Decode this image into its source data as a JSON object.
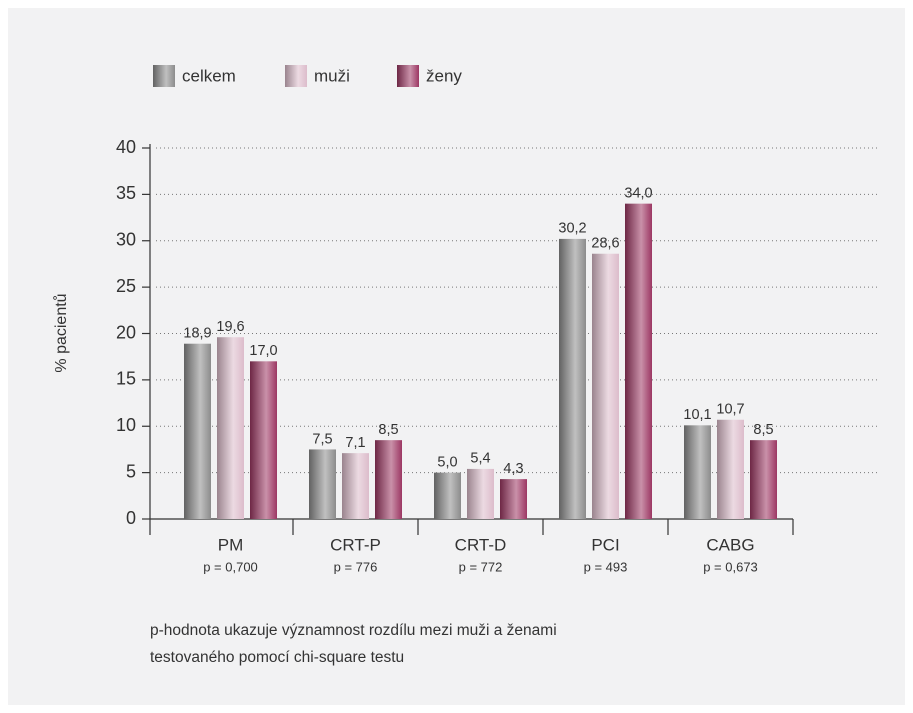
{
  "chart_data": {
    "type": "bar",
    "y_label": "% pacientů",
    "categories": [
      "PM",
      "CRT-P",
      "CRT-D",
      "PCI",
      "CABG"
    ],
    "category_notes": [
      "p = 0,700",
      "p = 776",
      "p = 772",
      "p = 493",
      "p = 0,673"
    ],
    "series": [
      {
        "name": "celkem",
        "color": "#8c8c8c",
        "values": [
          18.9,
          7.5,
          5.0,
          30.2,
          10.1
        ],
        "value_labels": [
          "18,9",
          "7,5",
          "5,0",
          "30,2",
          "10,1"
        ]
      },
      {
        "name": "muži",
        "color": "#dcbccb",
        "values": [
          19.6,
          7.1,
          5.4,
          28.6,
          10.7
        ],
        "value_labels": [
          "19,6",
          "7,1",
          "5,4",
          "28,6",
          "10,7"
        ]
      },
      {
        "name": "ženy",
        "color": "#9c3763",
        "values": [
          17.0,
          8.5,
          4.3,
          34.0,
          8.5
        ],
        "value_labels": [
          "17,0",
          "8,5",
          "4,3",
          "34,0",
          "8,5"
        ]
      }
    ],
    "ylim": [
      0,
      40
    ],
    "yticks": [
      0,
      5,
      10,
      15,
      20,
      25,
      30,
      35,
      40
    ],
    "grid": true,
    "footnote": [
      "p-hodnota ukazuje významnost rozdílu mezi muži a ženami",
      "testovaného pomocí chi-square testu"
    ]
  }
}
